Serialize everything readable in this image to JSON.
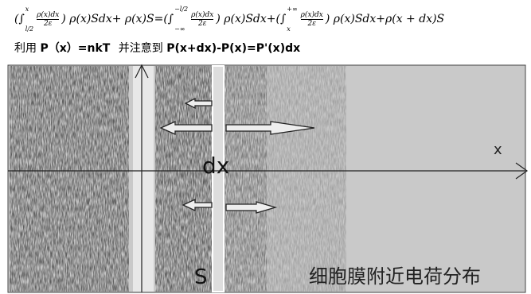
{
  "formula": {
    "terms": [
      {
        "lead": "(∫",
        "upper": "x",
        "lower": "l/2",
        "num": "ρ(x)dx",
        "den": "2ε",
        "tail": ") ρ(x)Sdx+ ρ(x)S="
      },
      {
        "lead": "(∫",
        "upper": "−l/2",
        "lower": "−∞",
        "num": "ρ(x)dx",
        "den": "2ε",
        "tail": ") ρ(x)Sdx+"
      },
      {
        "lead": "(∫",
        "upper": "+∞",
        "lower": "x",
        "num": "ρ(x)dx",
        "den": "2ε",
        "tail": ") ρ(x)Sdx+ρ(x + dx)S"
      }
    ]
  },
  "line2": {
    "intro": "利用",
    "law": "P（x）=nkT",
    "mid": "并注意到",
    "relation": "P(x+dx)-P(x)=P'(x)dx"
  },
  "figure": {
    "axis_label": "x",
    "strip_label": "dx",
    "surface_label": "S",
    "caption": "细胞膜附近电荷分布"
  }
}
